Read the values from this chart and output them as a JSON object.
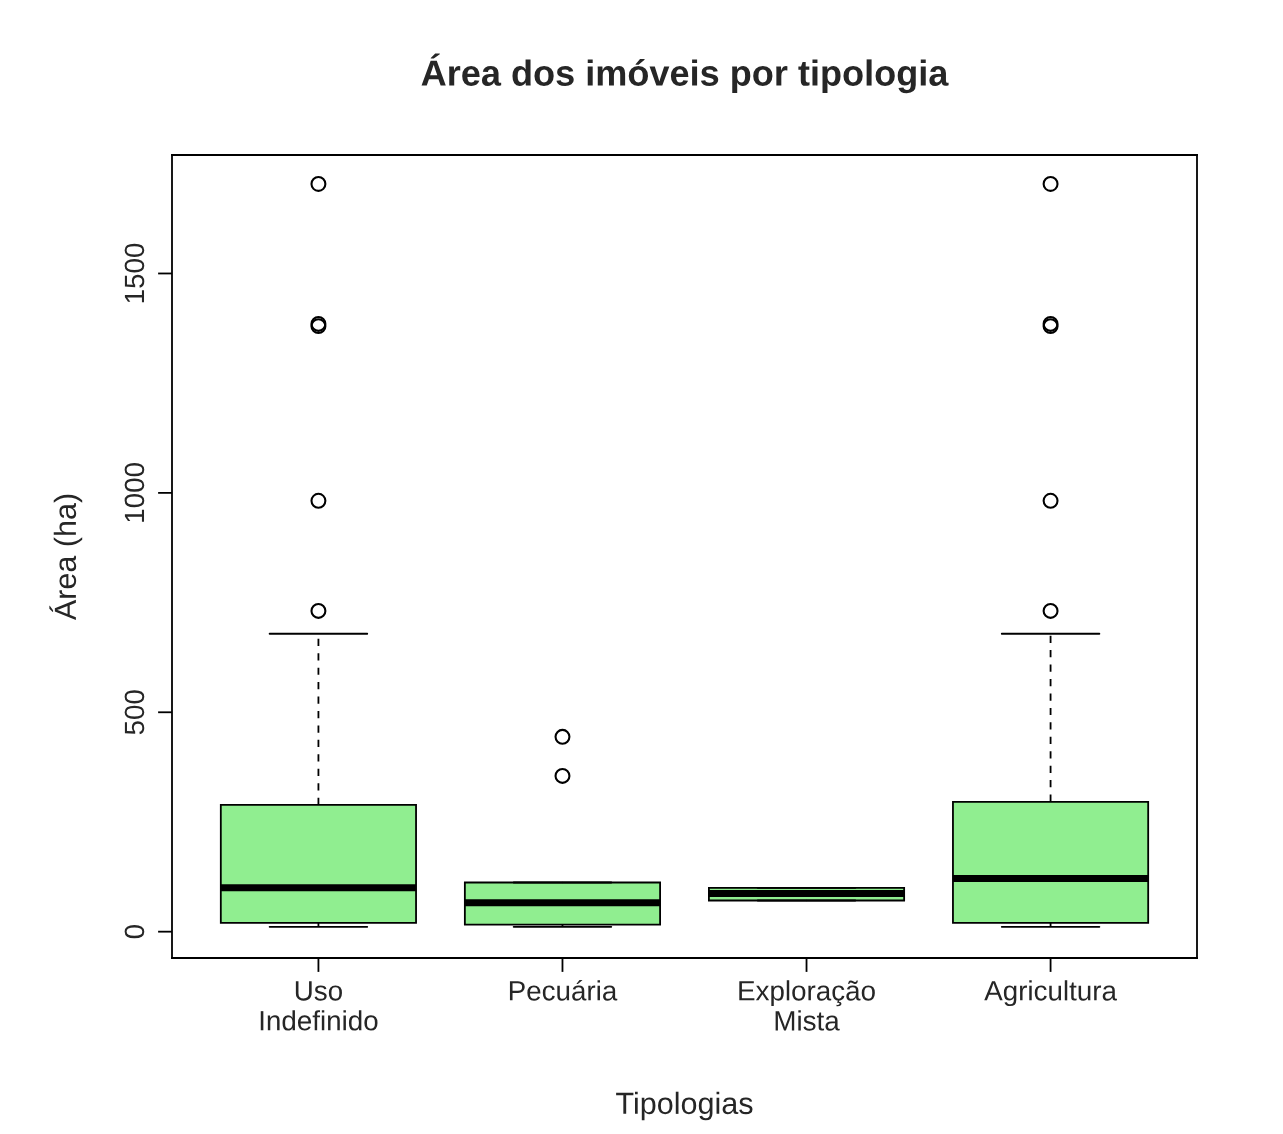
{
  "chart_data": {
    "type": "box",
    "title": "Área dos imóveis por tipologia",
    "xlabel": "Tipologias",
    "ylabel": "Área (ha)",
    "categories": [
      "Uso\nIndefinido",
      "Pecuária",
      "Exploração\nMista",
      "Agricultura"
    ],
    "color": "#90ee90",
    "boxes": [
      {
        "low": 11,
        "q1": 20,
        "median": 100,
        "q3": 289,
        "high": 679,
        "outliers": [
          731,
          982,
          1380,
          1385,
          1704
        ]
      },
      {
        "low": 11,
        "q1": 16,
        "median": 66,
        "q3": 112,
        "high": 112,
        "outliers": [
          355,
          444
        ]
      },
      {
        "low": 71,
        "q1": 71,
        "median": 87,
        "q3": 100,
        "high": 100
      },
      {
        "low": 11,
        "q1": 20,
        "median": 121,
        "q3": 296,
        "high": 679,
        "outliers": [
          731,
          982,
          1380,
          1385,
          1704
        ]
      }
    ],
    "ylim": [
      -60,
      1770
    ],
    "yticks": [
      0,
      500,
      1000,
      1500
    ],
    "grid": false
  }
}
